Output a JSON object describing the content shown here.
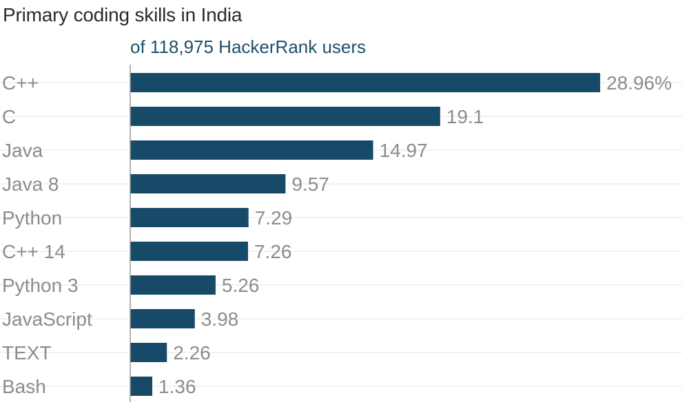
{
  "chart_data": {
    "type": "bar",
    "orientation": "horizontal",
    "title": "Primary coding skills in India",
    "subtitle": "of 118,975 HackerRank users",
    "categories": [
      "C++",
      "C",
      "Java",
      "Java 8",
      "Python",
      "C++ 14",
      "Python 3",
      "JavaScript",
      "TEXT",
      "Bash"
    ],
    "values": [
      28.96,
      19.1,
      14.97,
      9.57,
      7.29,
      7.26,
      5.26,
      3.98,
      2.26,
      1.36
    ],
    "value_labels": [
      "28.96%",
      "19.1",
      "14.97",
      "9.57",
      "7.29",
      "7.26",
      "5.26",
      "3.98",
      "2.26",
      "1.36"
    ],
    "xlim": [
      0,
      29
    ],
    "grid": true,
    "colors": {
      "bar": "#174a69",
      "title": "#2a2a2a",
      "subtitle": "#1e4f6e",
      "labels": "#8c8c8c",
      "grid": "#e6e6e6",
      "axis": "#9a9a9a"
    }
  }
}
